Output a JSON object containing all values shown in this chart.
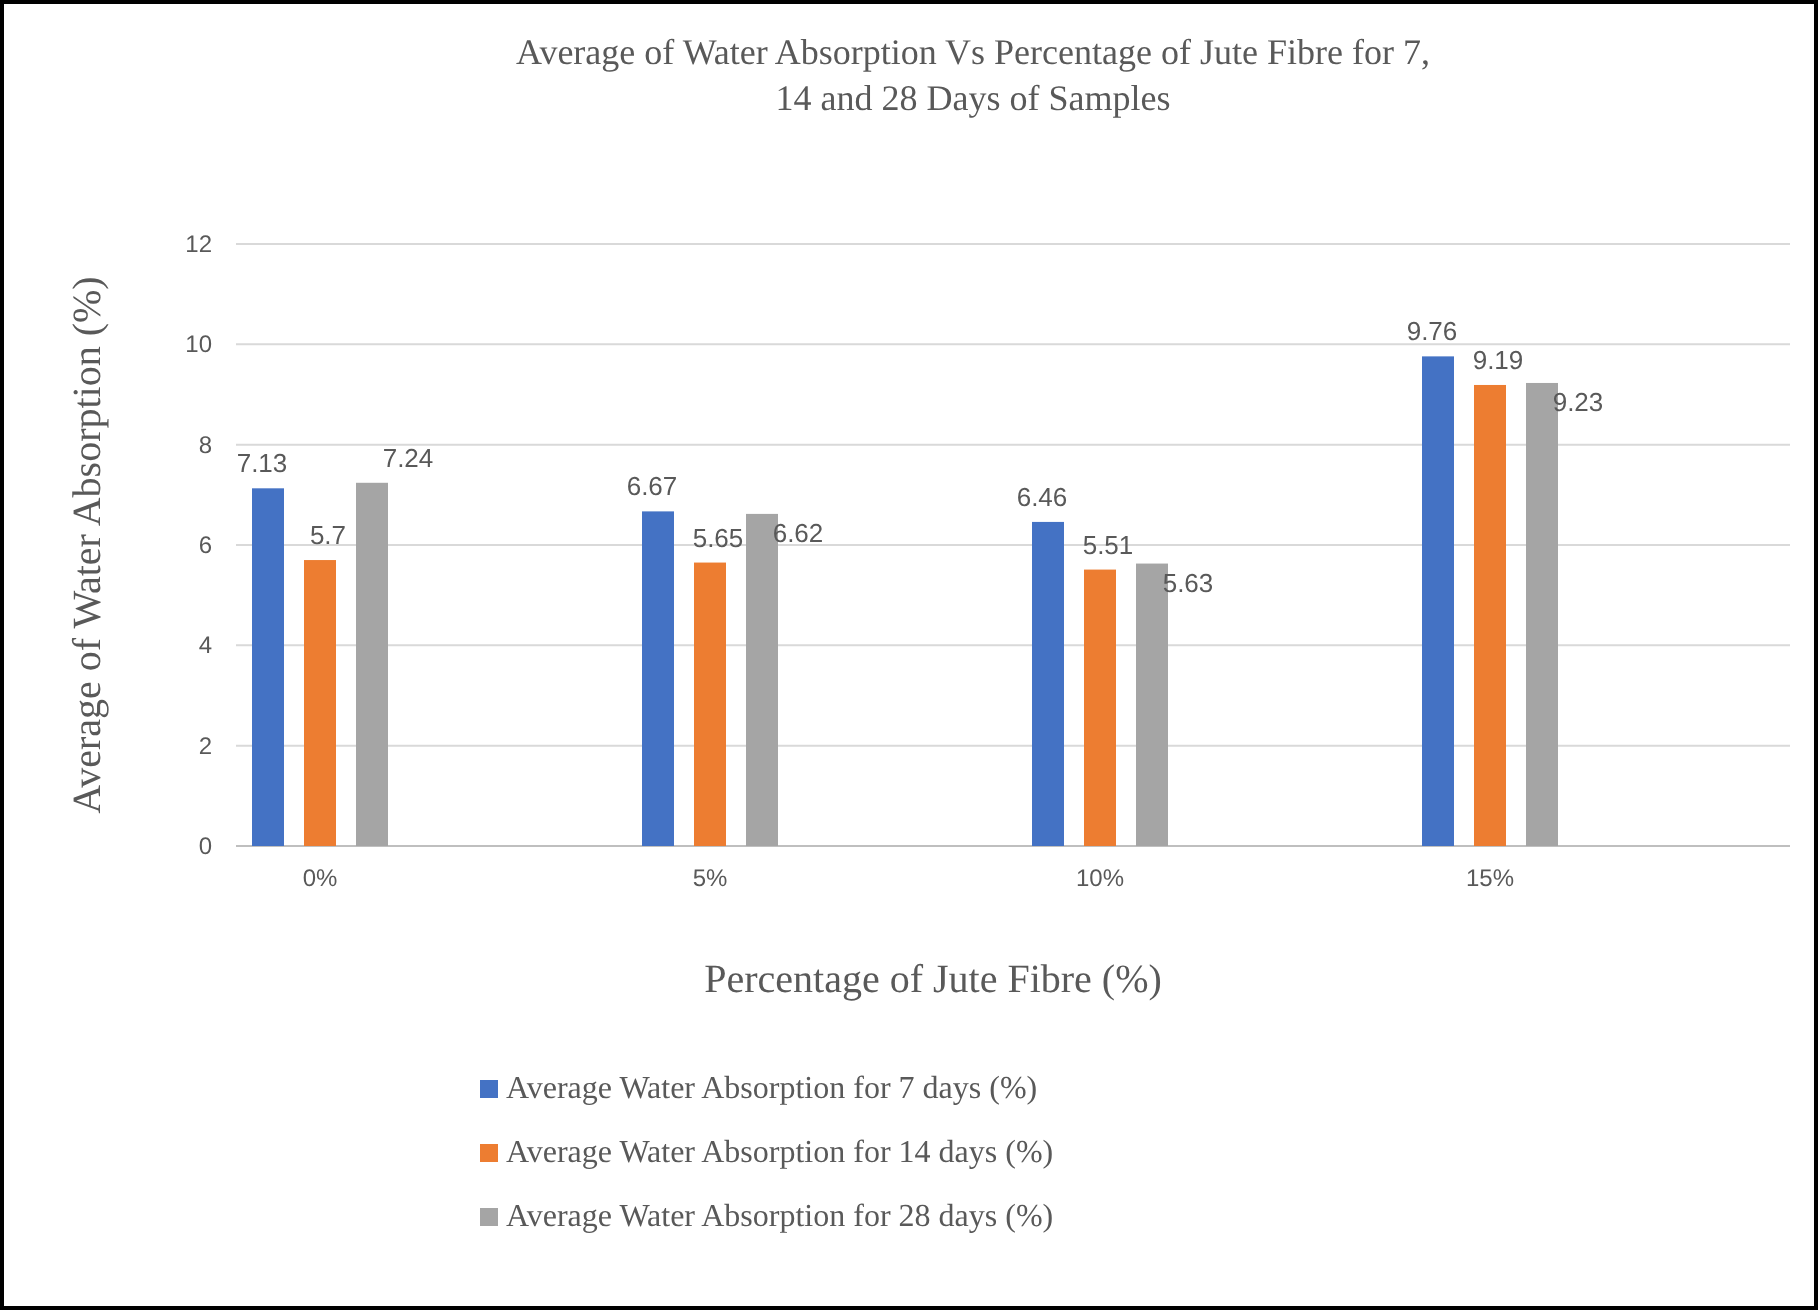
{
  "chart_data": {
    "type": "bar",
    "title": "Average of Water Absorption Vs Percentage of Jute Fibre for 7, 14 and 28 Days of Samples",
    "xlabel": "Percentage of Jute Fibre (%)",
    "ylabel": "Average of Water Absorption (%)",
    "categories": [
      "0%",
      "5%",
      "10%",
      "15%"
    ],
    "series": [
      {
        "name": "Average Water Absorption for 7 days (%)",
        "color": "#4472c4",
        "values": [
          7.13,
          6.67,
          6.46,
          9.76
        ]
      },
      {
        "name": "Average Water Absorption for 14 days (%)",
        "color": "#ed7d31",
        "values": [
          5.7,
          5.65,
          5.51,
          9.19
        ]
      },
      {
        "name": "Average Water Absorption for 28 days (%)",
        "color": "#a5a5a5",
        "values": [
          7.24,
          6.62,
          5.63,
          9.23
        ]
      }
    ],
    "ylim": [
      0,
      12
    ],
    "yticks": [
      0,
      2,
      4,
      6,
      8,
      10,
      12
    ],
    "grid": "y",
    "legend": "bottom",
    "data_labels": true
  }
}
